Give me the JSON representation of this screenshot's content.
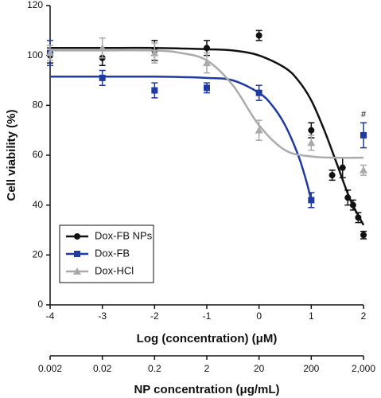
{
  "chart_data": {
    "type": "scatter",
    "xlabel": "Log (concentration) (μM)",
    "ylabel": "Cell viability (%)",
    "x2label": "NP concentration (μg/mL)",
    "xlim": [
      -4,
      2
    ],
    "xticks": [
      -4,
      -3,
      -2,
      -1,
      0,
      1,
      2
    ],
    "ylim": [
      0,
      120
    ],
    "yticks": [
      0,
      20,
      40,
      60,
      80,
      100,
      120
    ],
    "x2lim": [
      0.002,
      2000
    ],
    "x2log": true,
    "x2ticks": [
      0.002,
      0.02,
      0.2,
      2,
      20,
      200,
      {
        "value": 2000,
        "label": "2,000"
      }
    ],
    "legend": "lower left",
    "annotation": "#",
    "series": [
      {
        "name": "Dox-FB NPs",
        "color": "#111111",
        "marker": "circle",
        "x": [
          -4,
          -3,
          -2,
          -1,
          0,
          1,
          1.4,
          1.6,
          1.7,
          1.8,
          1.9,
          2
        ],
        "values": [
          100,
          99,
          102,
          103,
          108,
          70,
          52,
          55,
          43,
          40,
          35,
          28
        ],
        "errors": [
          3,
          3,
          4,
          3,
          2,
          3,
          2,
          4,
          3,
          2,
          2,
          1.5
        ],
        "fit": {
          "x": [
            -4,
            -3,
            -2,
            -1,
            -0.5,
            0,
            0.5,
            0.75,
            1,
            1.25,
            1.5,
            1.75,
            2
          ],
          "values": [
            103,
            103,
            103,
            102.5,
            102,
            100,
            95,
            90,
            82,
            70,
            56,
            42,
            32
          ]
        }
      },
      {
        "name": "Dox-FB",
        "color": "#1f3aa0",
        "marker": "square",
        "x": [
          -4,
          -3,
          -2,
          -1,
          0,
          1,
          2
        ],
        "values": [
          101,
          91,
          86,
          87,
          85,
          42,
          68
        ],
        "errors": [
          5,
          3,
          3,
          2,
          3,
          3,
          5
        ],
        "fit": {
          "x": [
            -4,
            -3,
            -2,
            -1,
            -0.5,
            0,
            0.25,
            0.5,
            0.75,
            0.9,
            1
          ],
          "values": [
            91.5,
            91.5,
            91.5,
            91,
            90,
            85,
            80,
            72,
            60,
            50,
            42
          ]
        }
      },
      {
        "name": "Dox-HCl",
        "color": "#aaaaaa",
        "marker": "triangle",
        "x": [
          -4,
          -3,
          -2,
          -1,
          0,
          1,
          2
        ],
        "values": [
          101,
          103,
          101,
          97,
          70,
          65,
          54
        ],
        "errors": [
          3,
          4,
          4,
          4,
          4,
          3,
          2
        ],
        "fit": {
          "x": [
            -4,
            -3,
            -2,
            -1.5,
            -1,
            -0.5,
            0,
            0.5,
            1,
            1.5,
            2
          ],
          "values": [
            102,
            102,
            102,
            101,
            98,
            88,
            72,
            62,
            59.5,
            59,
            59
          ]
        }
      }
    ]
  }
}
